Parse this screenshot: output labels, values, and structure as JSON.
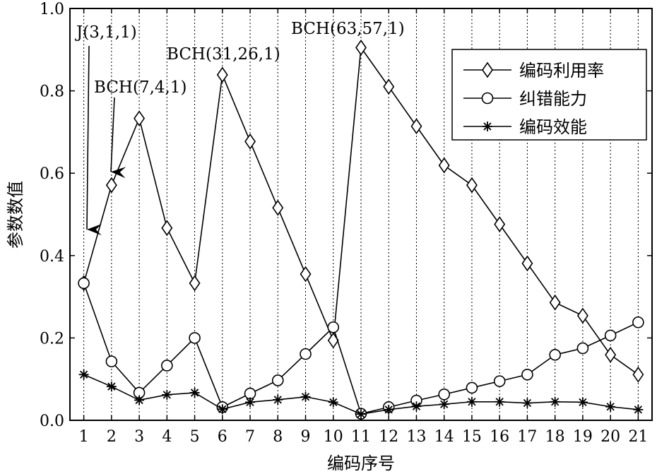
{
  "chart_data": {
    "type": "line",
    "xlabel": "编码序号",
    "ylabel": "参数数值",
    "x": [
      1,
      2,
      3,
      4,
      5,
      6,
      7,
      8,
      9,
      10,
      11,
      12,
      13,
      14,
      15,
      16,
      17,
      18,
      19,
      20,
      21
    ],
    "xlim": [
      0.5,
      21.5
    ],
    "ylim": [
      0,
      1.0
    ],
    "yticks": [
      0.0,
      0.2,
      0.4,
      0.6,
      0.8,
      1.0
    ],
    "ytick_labels": [
      "0.0",
      "0.2",
      "0.4",
      "0.6",
      "0.8",
      "1.0"
    ],
    "vertical_dashed_gridlines": true,
    "legend_position": "top-right",
    "series": [
      {
        "name": "编码利用率",
        "marker": "diamond",
        "values": [
          0.333,
          0.571,
          0.733,
          0.467,
          0.333,
          0.839,
          0.677,
          0.516,
          0.355,
          0.194,
          0.905,
          0.81,
          0.714,
          0.619,
          0.571,
          0.476,
          0.381,
          0.286,
          0.254,
          0.159,
          0.111
        ]
      },
      {
        "name": "纠错能力",
        "marker": "circle",
        "values": [
          0.333,
          0.143,
          0.067,
          0.133,
          0.2,
          0.032,
          0.065,
          0.097,
          0.161,
          0.226,
          0.016,
          0.032,
          0.048,
          0.063,
          0.079,
          0.095,
          0.111,
          0.159,
          0.175,
          0.206,
          0.238
        ]
      },
      {
        "name": "编码效能",
        "marker": "asterisk",
        "values": [
          0.111,
          0.082,
          0.049,
          0.062,
          0.067,
          0.027,
          0.044,
          0.05,
          0.057,
          0.044,
          0.015,
          0.026,
          0.034,
          0.039,
          0.045,
          0.045,
          0.042,
          0.045,
          0.044,
          0.033,
          0.026
        ]
      }
    ],
    "annotations": [
      {
        "text": "J(3,1,1)",
        "x": 1,
        "arrow": true,
        "arrow_target_y": 0.46
      },
      {
        "text": "BCH(7,4,1)",
        "x": 2,
        "arrow": true,
        "arrow_target_y": 0.6
      },
      {
        "text": "BCH(31,26,1)",
        "x": 6,
        "arrow": false
      },
      {
        "text": "BCH(63,57,1)",
        "x": 11,
        "arrow": false
      }
    ]
  }
}
